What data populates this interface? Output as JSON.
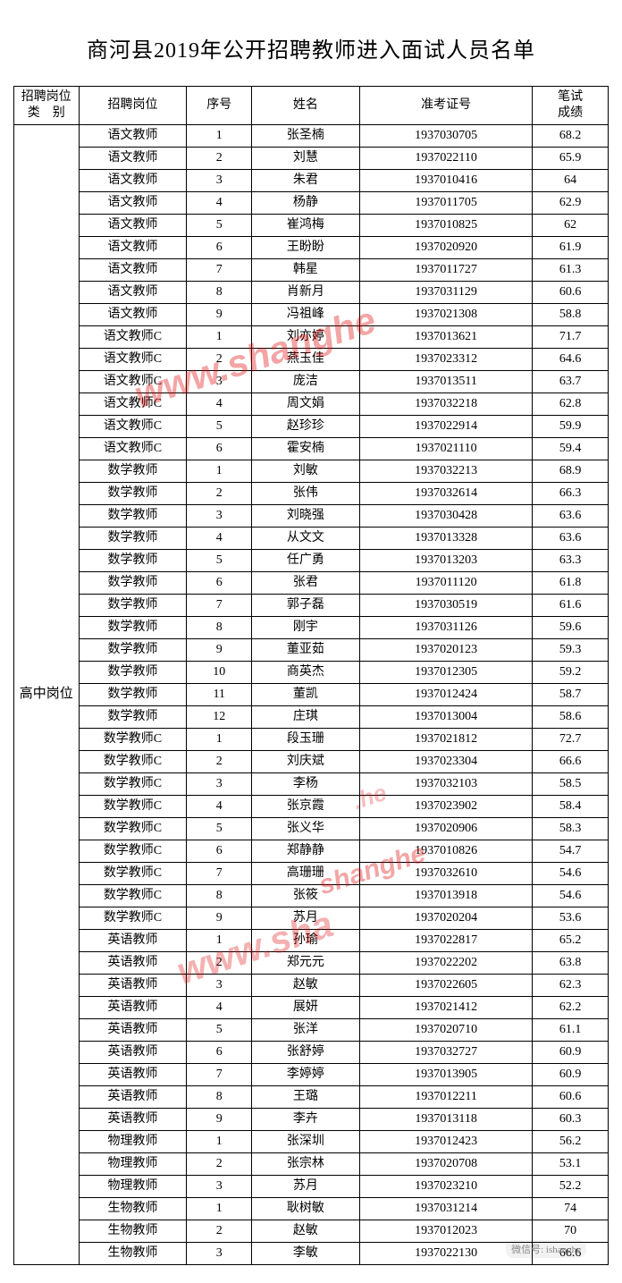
{
  "title": "商河县2019年公开招聘教师进入面试人员名单",
  "headers": {
    "category": "招聘岗位\n类　别",
    "position": "招聘岗位",
    "no": "序号",
    "name": "姓名",
    "exam_id": "准考证号",
    "score": "笔试\n成绩"
  },
  "category_label": "高中岗位",
  "watermarks": {
    "w1": "www.shanghe",
    "w2": "shanghe",
    "w3": "www.sha",
    "w4": ".he"
  },
  "footer": "微信号: ishanghe",
  "rows": [
    {
      "position": "语文教师",
      "no": "1",
      "name": "张圣楠",
      "id": "1937030705",
      "score": "68.2"
    },
    {
      "position": "语文教师",
      "no": "2",
      "name": "刘慧",
      "id": "1937022110",
      "score": "65.9"
    },
    {
      "position": "语文教师",
      "no": "3",
      "name": "朱君",
      "id": "1937010416",
      "score": "64"
    },
    {
      "position": "语文教师",
      "no": "4",
      "name": "杨静",
      "id": "1937011705",
      "score": "62.9"
    },
    {
      "position": "语文教师",
      "no": "5",
      "name": "崔鸿梅",
      "id": "1937010825",
      "score": "62"
    },
    {
      "position": "语文教师",
      "no": "6",
      "name": "王盼盼",
      "id": "1937020920",
      "score": "61.9"
    },
    {
      "position": "语文教师",
      "no": "7",
      "name": "韩星",
      "id": "1937011727",
      "score": "61.3"
    },
    {
      "position": "语文教师",
      "no": "8",
      "name": "肖新月",
      "id": "1937031129",
      "score": "60.6"
    },
    {
      "position": "语文教师",
      "no": "9",
      "name": "冯祖峰",
      "id": "1937021308",
      "score": "58.8"
    },
    {
      "position": "语文教师C",
      "no": "1",
      "name": "刘亦婷",
      "id": "1937013621",
      "score": "71.7"
    },
    {
      "position": "语文教师C",
      "no": "2",
      "name": "燕玉佳",
      "id": "1937023312",
      "score": "64.6"
    },
    {
      "position": "语文教师C",
      "no": "3",
      "name": "庞洁",
      "id": "1937013511",
      "score": "63.7"
    },
    {
      "position": "语文教师C",
      "no": "4",
      "name": "周文娟",
      "id": "1937032218",
      "score": "62.8"
    },
    {
      "position": "语文教师C",
      "no": "5",
      "name": "赵珍珍",
      "id": "1937022914",
      "score": "59.9"
    },
    {
      "position": "语文教师C",
      "no": "6",
      "name": "霍安楠",
      "id": "1937021110",
      "score": "59.4"
    },
    {
      "position": "数学教师",
      "no": "1",
      "name": "刘敏",
      "id": "1937032213",
      "score": "68.9"
    },
    {
      "position": "数学教师",
      "no": "2",
      "name": "张伟",
      "id": "1937032614",
      "score": "66.3"
    },
    {
      "position": "数学教师",
      "no": "3",
      "name": "刘晓强",
      "id": "1937030428",
      "score": "63.6"
    },
    {
      "position": "数学教师",
      "no": "4",
      "name": "从文文",
      "id": "1937013328",
      "score": "63.6"
    },
    {
      "position": "数学教师",
      "no": "5",
      "name": "任广勇",
      "id": "1937013203",
      "score": "63.3"
    },
    {
      "position": "数学教师",
      "no": "6",
      "name": "张君",
      "id": "1937011120",
      "score": "61.8"
    },
    {
      "position": "数学教师",
      "no": "7",
      "name": "郭子磊",
      "id": "1937030519",
      "score": "61.6"
    },
    {
      "position": "数学教师",
      "no": "8",
      "name": "刚宇",
      "id": "1937031126",
      "score": "59.6"
    },
    {
      "position": "数学教师",
      "no": "9",
      "name": "董亚茹",
      "id": "1937020123",
      "score": "59.3"
    },
    {
      "position": "数学教师",
      "no": "10",
      "name": "商英杰",
      "id": "1937012305",
      "score": "59.2"
    },
    {
      "position": "数学教师",
      "no": "11",
      "name": "董凯",
      "id": "1937012424",
      "score": "58.7"
    },
    {
      "position": "数学教师",
      "no": "12",
      "name": "庄琪",
      "id": "1937013004",
      "score": "58.6"
    },
    {
      "position": "数学教师C",
      "no": "1",
      "name": "段玉珊",
      "id": "1937021812",
      "score": "72.7"
    },
    {
      "position": "数学教师C",
      "no": "2",
      "name": "刘庆斌",
      "id": "1937023304",
      "score": "66.6"
    },
    {
      "position": "数学教师C",
      "no": "3",
      "name": "李杨",
      "id": "1937032103",
      "score": "58.5"
    },
    {
      "position": "数学教师C",
      "no": "4",
      "name": "张京霞",
      "id": "1937023902",
      "score": "58.4"
    },
    {
      "position": "数学教师C",
      "no": "5",
      "name": "张义华",
      "id": "1937020906",
      "score": "58.3"
    },
    {
      "position": "数学教师C",
      "no": "6",
      "name": "郑静静",
      "id": "1937010826",
      "score": "54.7"
    },
    {
      "position": "数学教师C",
      "no": "7",
      "name": "高珊珊",
      "id": "1937032610",
      "score": "54.6"
    },
    {
      "position": "数学教师C",
      "no": "8",
      "name": "张筱",
      "id": "1937013918",
      "score": "54.6"
    },
    {
      "position": "数学教师C",
      "no": "9",
      "name": "苏月",
      "id": "1937020204",
      "score": "53.6"
    },
    {
      "position": "英语教师",
      "no": "1",
      "name": "孙瑜",
      "id": "1937022817",
      "score": "65.2"
    },
    {
      "position": "英语教师",
      "no": "2",
      "name": "郑元元",
      "id": "1937022202",
      "score": "63.8"
    },
    {
      "position": "英语教师",
      "no": "3",
      "name": "赵敏",
      "id": "1937022605",
      "score": "62.3"
    },
    {
      "position": "英语教师",
      "no": "4",
      "name": "展妍",
      "id": "1937021412",
      "score": "62.2"
    },
    {
      "position": "英语教师",
      "no": "5",
      "name": "张洋",
      "id": "1937020710",
      "score": "61.1"
    },
    {
      "position": "英语教师",
      "no": "6",
      "name": "张舒婷",
      "id": "1937032727",
      "score": "60.9"
    },
    {
      "position": "英语教师",
      "no": "7",
      "name": "李婷婷",
      "id": "1937013905",
      "score": "60.9"
    },
    {
      "position": "英语教师",
      "no": "8",
      "name": "王璐",
      "id": "1937012211",
      "score": "60.6"
    },
    {
      "position": "英语教师",
      "no": "9",
      "name": "李卉",
      "id": "1937013118",
      "score": "60.3"
    },
    {
      "position": "物理教师",
      "no": "1",
      "name": "张深圳",
      "id": "1937012423",
      "score": "56.2"
    },
    {
      "position": "物理教师",
      "no": "2",
      "name": "张宗林",
      "id": "1937020708",
      "score": "53.1"
    },
    {
      "position": "物理教师",
      "no": "3",
      "name": "苏月",
      "id": "1937023210",
      "score": "52.2"
    },
    {
      "position": "生物教师",
      "no": "1",
      "name": "耿树敏",
      "id": "1937031214",
      "score": "74"
    },
    {
      "position": "生物教师",
      "no": "2",
      "name": "赵敏",
      "id": "1937012023",
      "score": "70"
    },
    {
      "position": "生物教师",
      "no": "3",
      "name": "李敏",
      "id": "1937022130",
      "score": "66.6"
    }
  ]
}
